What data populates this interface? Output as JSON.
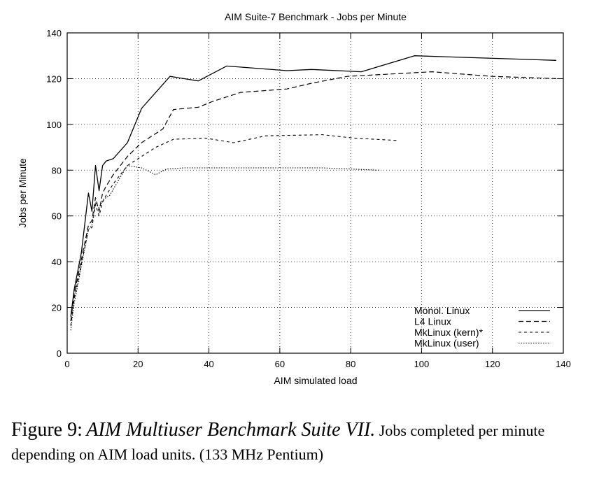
{
  "chart_data": {
    "type": "line",
    "title": "AIM Suite-7 Benchmark - Jobs per Minute",
    "xlabel": "AIM simulated load",
    "ylabel": "Jobs per Minute",
    "xlim": [
      0,
      140
    ],
    "ylim": [
      0,
      140
    ],
    "xticks": [
      0,
      20,
      40,
      60,
      80,
      100,
      120,
      140
    ],
    "yticks": [
      0,
      20,
      40,
      60,
      80,
      100,
      120,
      140
    ],
    "grid": true,
    "legend_position": "bottom-right",
    "series": [
      {
        "name": "Monol. Linux",
        "x": [
          1,
          2,
          4,
          6,
          7,
          8,
          9,
          10,
          11,
          13,
          17,
          21,
          29,
          37,
          45,
          62,
          69,
          83,
          98,
          138
        ],
        "y": [
          16,
          28,
          44,
          70,
          62,
          82,
          71,
          82,
          84,
          85,
          92,
          107,
          121,
          119,
          125.5,
          123.5,
          124,
          123,
          130,
          128
        ]
      },
      {
        "name": "L4 Linux",
        "x": [
          1,
          2,
          4,
          6,
          7,
          8,
          9,
          10,
          11,
          13,
          17,
          21,
          27,
          30,
          37,
          41,
          49,
          62,
          69,
          79,
          103,
          120,
          138
        ],
        "y": [
          14,
          26,
          41,
          56,
          58,
          68,
          62,
          70,
          73,
          78,
          86,
          92,
          98,
          106.5,
          107.5,
          110,
          114,
          115.5,
          118,
          121,
          123,
          121,
          120
        ]
      },
      {
        "name": "MkLinux (kern)*",
        "x": [
          1,
          2,
          4,
          6,
          7,
          8,
          9,
          10,
          11,
          13,
          17,
          21,
          25,
          30,
          39,
          47,
          56,
          72,
          81,
          93
        ],
        "y": [
          12,
          24,
          39,
          54,
          55,
          65,
          60,
          66,
          69,
          74,
          82,
          86,
          90,
          93.5,
          94,
          92,
          95,
          95.5,
          94,
          93
        ]
      },
      {
        "name": "MkLinux (user)",
        "x": [
          1,
          2,
          4,
          6,
          7,
          8,
          9,
          10,
          12,
          15,
          17,
          21,
          25,
          28,
          33,
          41,
          56,
          72,
          88
        ],
        "y": [
          10,
          22,
          38,
          54,
          56,
          66,
          63,
          67,
          69,
          77,
          82,
          81,
          78,
          80.5,
          81,
          81,
          81,
          81,
          80
        ]
      }
    ]
  },
  "caption": {
    "figure_label": "Figure 9:",
    "italic_title": "AIM Multiuser Benchmark Suite VII.",
    "text": "Jobs completed per minute depending on AIM load units. (133 MHz Pentium)"
  }
}
